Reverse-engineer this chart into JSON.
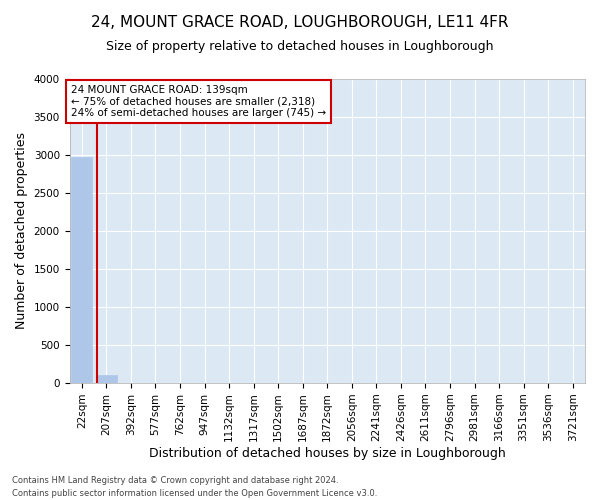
{
  "title": "24, MOUNT GRACE ROAD, LOUGHBOROUGH, LE11 4FR",
  "subtitle": "Size of property relative to detached houses in Loughborough",
  "xlabel": "Distribution of detached houses by size in Loughborough",
  "ylabel": "Number of detached properties",
  "footnote1": "Contains HM Land Registry data © Crown copyright and database right 2024.",
  "footnote2": "Contains public sector information licensed under the Open Government Licence v3.0.",
  "categories": [
    "22sqm",
    "207sqm",
    "392sqm",
    "577sqm",
    "762sqm",
    "947sqm",
    "1132sqm",
    "1317sqm",
    "1502sqm",
    "1687sqm",
    "1872sqm",
    "2056sqm",
    "2241sqm",
    "2426sqm",
    "2611sqm",
    "2796sqm",
    "2981sqm",
    "3166sqm",
    "3351sqm",
    "3536sqm",
    "3721sqm"
  ],
  "bar_heights": [
    2980,
    110,
    0,
    0,
    0,
    0,
    0,
    0,
    0,
    0,
    0,
    0,
    0,
    0,
    0,
    0,
    0,
    0,
    0,
    0,
    0
  ],
  "bar_color": "#aec6e8",
  "bar_edge_color": "#aec6e8",
  "annotation_text": "24 MOUNT GRACE ROAD: 139sqm\n← 75% of detached houses are smaller (2,318)\n24% of semi-detached houses are larger (745) →",
  "annotation_box_color": "#ffffff",
  "annotation_box_edge": "#cc0000",
  "vline_color": "#cc0000",
  "vline_x": 0.62,
  "ylim": [
    0,
    4000
  ],
  "yticks": [
    0,
    500,
    1000,
    1500,
    2000,
    2500,
    3000,
    3500,
    4000
  ],
  "axes_facecolor": "#dce9f5",
  "grid_color": "#ffffff",
  "title_fontsize": 11,
  "subtitle_fontsize": 9,
  "xlabel_fontsize": 9,
  "ylabel_fontsize": 9,
  "tick_fontsize": 7.5,
  "annotation_fontsize": 7.5
}
